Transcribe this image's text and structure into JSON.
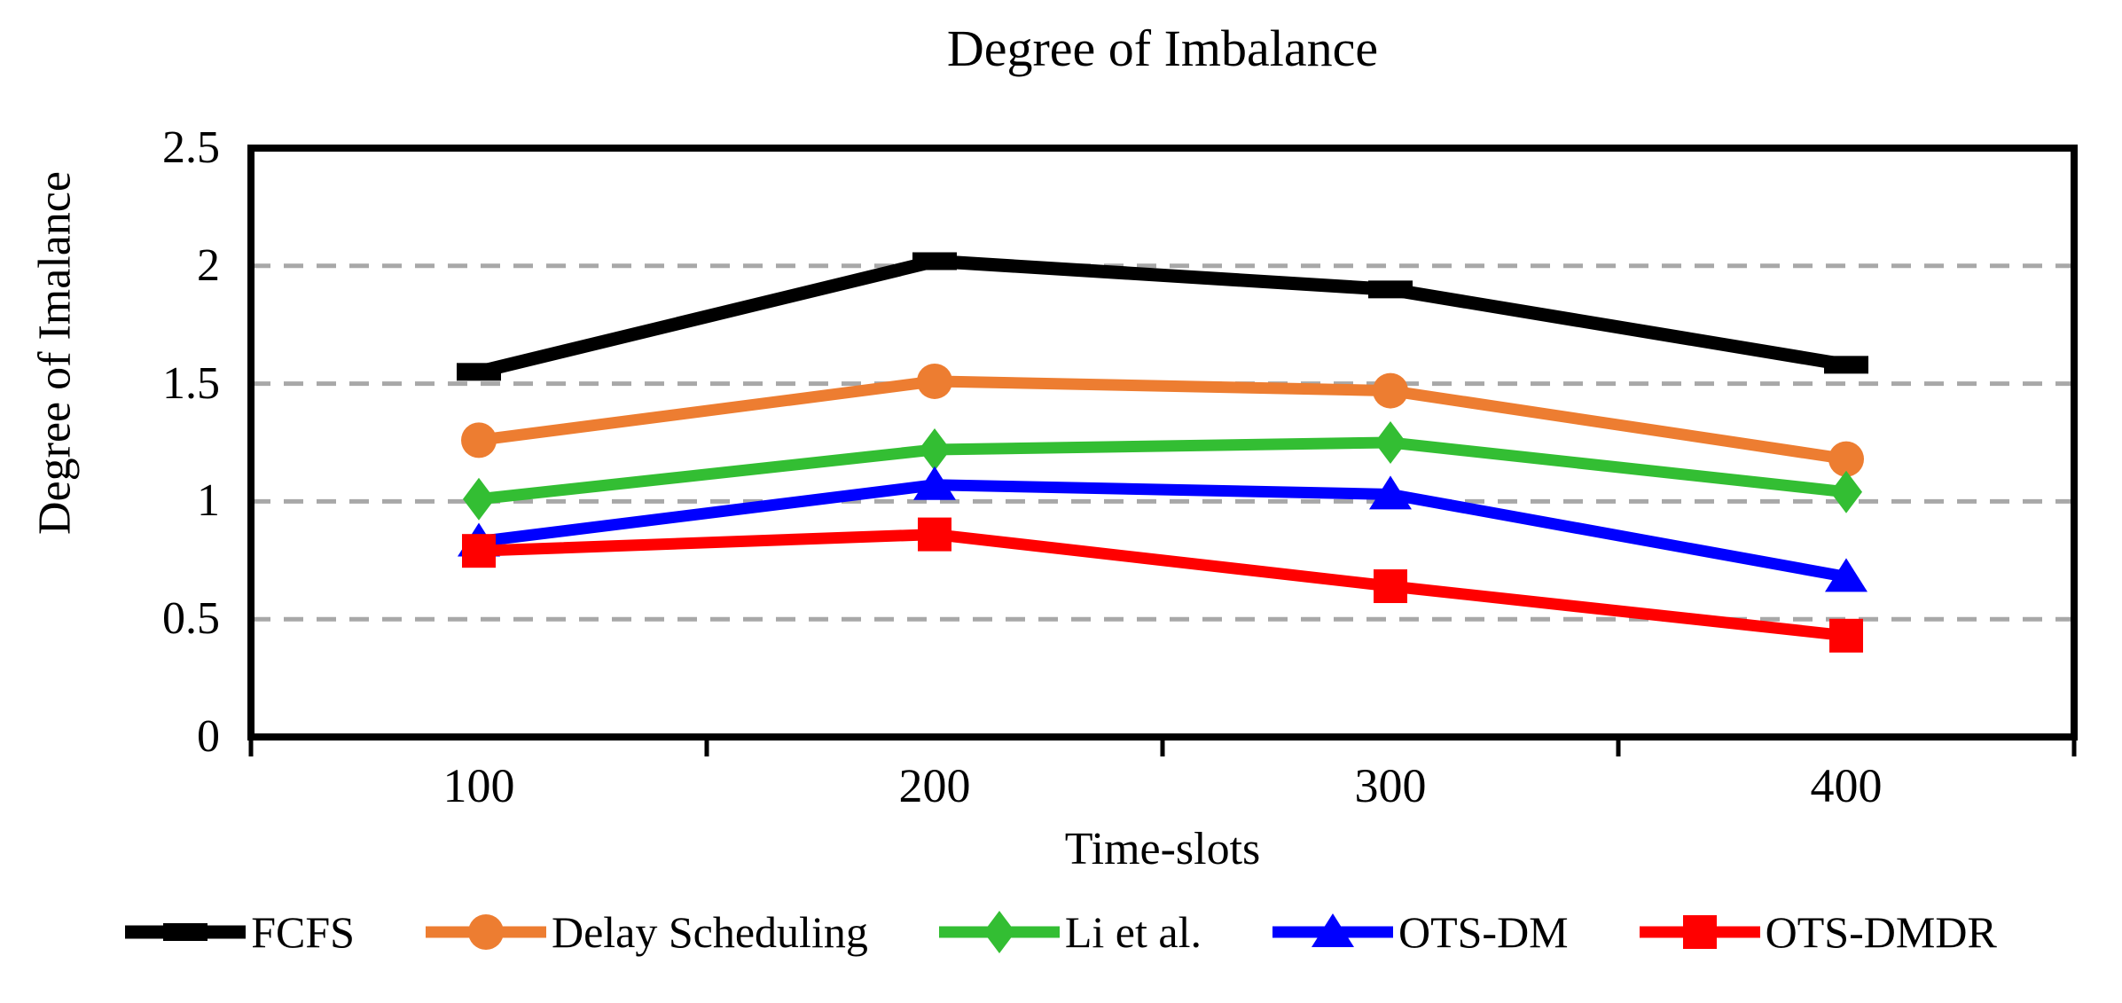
{
  "chart_data": {
    "type": "line",
    "title": "Degree of Imbalance",
    "xlabel": "Time-slots",
    "ylabel": "Degree of Imalance",
    "categories": [
      "100",
      "200",
      "300",
      "400"
    ],
    "ylim": [
      0,
      2.5
    ],
    "yticks": [
      0,
      0.5,
      1,
      1.5,
      2,
      2.5
    ],
    "ytick_labels": [
      "0",
      "0.5",
      "1",
      "1.5",
      "2",
      "2.5"
    ],
    "grid": "horizontal-dashed",
    "legend_position": "bottom",
    "axis_color": "#000000",
    "gridline_color": "#A8A8A8",
    "series": [
      {
        "name": "FCFS",
        "color": "#000000",
        "marker": "dash",
        "values": [
          1.55,
          2.02,
          1.9,
          1.58
        ]
      },
      {
        "name": "Delay Scheduling",
        "color": "#ED7D31",
        "marker": "circle",
        "values": [
          1.26,
          1.51,
          1.47,
          1.18
        ]
      },
      {
        "name": "Li et al.",
        "color": "#33BE33",
        "marker": "diamond",
        "values": [
          1.01,
          1.22,
          1.25,
          1.04
        ]
      },
      {
        "name": "OTS-DM",
        "color": "#0000FF",
        "marker": "triangle",
        "values": [
          0.83,
          1.07,
          1.03,
          0.68
        ]
      },
      {
        "name": "OTS-DMDR",
        "color": "#FF0000",
        "marker": "square",
        "values": [
          0.79,
          0.86,
          0.64,
          0.43
        ]
      }
    ]
  }
}
